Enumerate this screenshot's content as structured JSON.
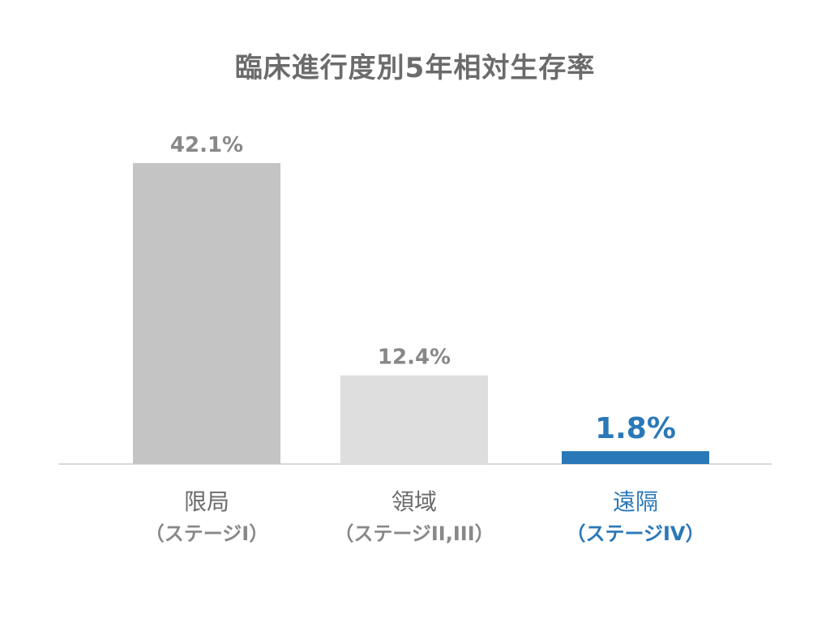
{
  "chart_data": {
    "type": "bar",
    "title": "臨床進行度別5年相対生存率",
    "xlabel": "",
    "ylabel": "",
    "ylim": [
      0,
      42.1
    ],
    "categories": [
      "限局",
      "領域",
      "遠隔"
    ],
    "category_subtitles": [
      "（ステージI）",
      "（ステージII,III）",
      "（ステージIV）"
    ],
    "values": [
      42.1,
      12.4,
      1.8
    ],
    "value_labels": [
      "42.1%",
      "12.4%",
      "1.8%"
    ],
    "bar_colors": [
      "#c4c4c4",
      "#dedede",
      "#2a78b8"
    ],
    "highlight_index": 2,
    "highlight_color": "#2a78b8",
    "grid": false,
    "legend": "none"
  }
}
